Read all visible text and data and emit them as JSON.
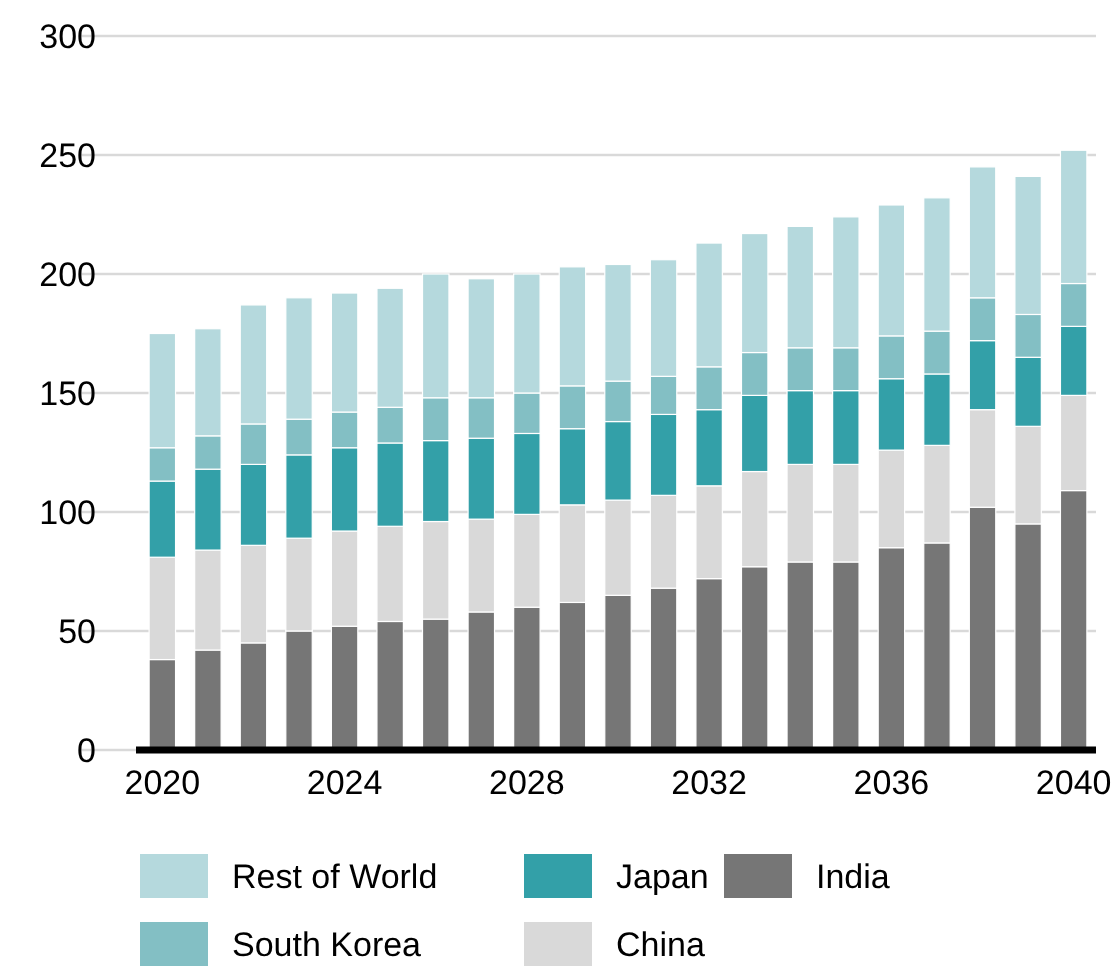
{
  "chart_data": {
    "type": "bar",
    "stacked": true,
    "categories": [
      "2020",
      null,
      null,
      null,
      "2024",
      null,
      null,
      null,
      "2028",
      null,
      null,
      null,
      "2032",
      null,
      null,
      null,
      "2036",
      null,
      null,
      null,
      "2040"
    ],
    "series": [
      {
        "name": "India",
        "color": "#767676",
        "values": [
          38,
          42,
          45,
          50,
          52,
          54,
          55,
          58,
          60,
          62,
          65,
          68,
          72,
          77,
          79,
          79,
          85,
          87,
          102,
          95,
          109
        ]
      },
      {
        "name": "China",
        "color": "#d9d9d9",
        "values": [
          43,
          42,
          41,
          39,
          40,
          40,
          41,
          39,
          39,
          41,
          40,
          39,
          39,
          40,
          41,
          41,
          41,
          41,
          41,
          41,
          40
        ]
      },
      {
        "name": "Japan",
        "color": "#33a0a8",
        "values": [
          32,
          34,
          34,
          35,
          35,
          35,
          34,
          34,
          34,
          32,
          33,
          34,
          32,
          32,
          31,
          31,
          30,
          30,
          29,
          29,
          29
        ]
      },
      {
        "name": "South Korea",
        "color": "#83bfc4",
        "values": [
          14,
          14,
          17,
          15,
          15,
          15,
          18,
          17,
          17,
          18,
          17,
          16,
          18,
          18,
          18,
          18,
          18,
          18,
          18,
          18,
          18
        ]
      },
      {
        "name": "Rest of World",
        "color": "#b5d9dd",
        "values": [
          48,
          45,
          50,
          51,
          50,
          50,
          52,
          50,
          50,
          50,
          49,
          49,
          52,
          50,
          51,
          55,
          55,
          56,
          55,
          58,
          56
        ]
      }
    ],
    "ylim": [
      0,
      300
    ],
    "yticks": [
      0,
      50,
      100,
      150,
      200,
      250,
      300
    ],
    "grid": "y",
    "legend": "bottom"
  }
}
